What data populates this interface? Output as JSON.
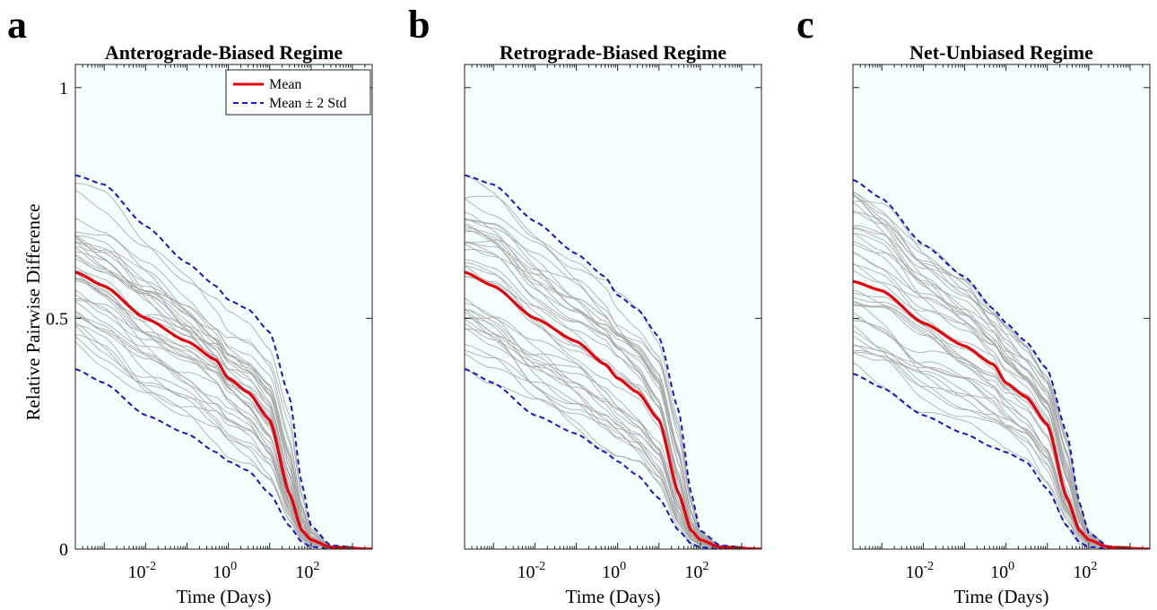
{
  "colors": {
    "background": "#f5ffff",
    "mean": "#e8000b",
    "std": "#1414d2",
    "samples": "#a8a8a8",
    "axis": "#222222"
  },
  "legend": {
    "mean_label": "Mean",
    "std_label": "Mean ± 2 Std",
    "placement": "top-right of panel a"
  },
  "chart_data": [
    {
      "panel": "a",
      "type": "line",
      "title": "Anterograde-Biased Regime",
      "xlabel": "Time (Days)",
      "ylabel": "Relative Pairwise Difference",
      "xscale": "log",
      "xlim": [
        0.0002,
        3000
      ],
      "ylim": [
        0,
        1.05
      ],
      "xticks": [
        {
          "value": 0.01,
          "base": "10",
          "exp": "-2"
        },
        {
          "value": 1,
          "base": "10",
          "exp": "0"
        },
        {
          "value": 100,
          "base": "10",
          "exp": "2"
        }
      ],
      "yticks": [
        {
          "value": 0,
          "label": "0"
        },
        {
          "value": 0.5,
          "label": "0.5"
        },
        {
          "value": 1,
          "label": "1"
        }
      ],
      "x": [
        0.0002,
        0.001,
        0.01,
        0.1,
        0.5,
        1,
        3,
        10,
        30,
        60,
        100,
        300,
        3000
      ],
      "series": [
        {
          "name": "Mean",
          "values": [
            0.6,
            0.57,
            0.5,
            0.45,
            0.41,
            0.37,
            0.34,
            0.28,
            0.12,
            0.04,
            0.02,
            0.004,
            0.0
          ]
        },
        {
          "name": "Mean ± 2 Std",
          "values": [
            0.81,
            0.79,
            0.7,
            0.62,
            0.57,
            0.54,
            0.52,
            0.47,
            0.33,
            0.14,
            0.05,
            0.008,
            0.0
          ]
        },
        {
          "name": "Mean ± 2 Std",
          "values": [
            0.39,
            0.36,
            0.29,
            0.25,
            0.21,
            0.19,
            0.17,
            0.12,
            0.05,
            0.015,
            0.005,
            0.0,
            0.0
          ]
        }
      ],
      "sample_count": 40,
      "show_legend": true
    },
    {
      "panel": "b",
      "type": "line",
      "title": "Retrograde-Biased Regime",
      "xlabel": "Time (Days)",
      "ylabel": "",
      "xscale": "log",
      "xlim": [
        0.0002,
        3000
      ],
      "ylim": [
        0,
        1.05
      ],
      "xticks": [
        {
          "value": 0.01,
          "base": "10",
          "exp": "-2"
        },
        {
          "value": 1,
          "base": "10",
          "exp": "0"
        },
        {
          "value": 100,
          "base": "10",
          "exp": "2"
        }
      ],
      "yticks": [],
      "x": [
        0.0002,
        0.001,
        0.01,
        0.1,
        0.5,
        1,
        3,
        10,
        30,
        60,
        100,
        300,
        3000
      ],
      "series": [
        {
          "name": "Mean",
          "values": [
            0.6,
            0.57,
            0.5,
            0.45,
            0.4,
            0.37,
            0.34,
            0.28,
            0.12,
            0.04,
            0.02,
            0.004,
            0.0
          ]
        },
        {
          "name": "Mean ± 2 Std",
          "values": [
            0.81,
            0.79,
            0.71,
            0.64,
            0.59,
            0.55,
            0.52,
            0.46,
            0.3,
            0.12,
            0.04,
            0.008,
            0.0
          ]
        },
        {
          "name": "Mean ± 2 Std",
          "values": [
            0.39,
            0.36,
            0.29,
            0.25,
            0.21,
            0.19,
            0.16,
            0.11,
            0.04,
            0.012,
            0.004,
            0.0,
            0.0
          ]
        }
      ],
      "sample_count": 40,
      "show_legend": false
    },
    {
      "panel": "c",
      "type": "line",
      "title": "Net-Unbiased Regime",
      "xlabel": "Time (Days)",
      "ylabel": "",
      "xscale": "log",
      "xlim": [
        0.0002,
        3000
      ],
      "ylim": [
        0,
        1.05
      ],
      "xticks": [
        {
          "value": 0.01,
          "base": "10",
          "exp": "-2"
        },
        {
          "value": 1,
          "base": "10",
          "exp": "0"
        },
        {
          "value": 100,
          "base": "10",
          "exp": "2"
        }
      ],
      "yticks": [],
      "x": [
        0.0002,
        0.001,
        0.01,
        0.1,
        0.5,
        1,
        3,
        10,
        30,
        60,
        100,
        300,
        3000
      ],
      "series": [
        {
          "name": "Mean",
          "values": [
            0.58,
            0.56,
            0.49,
            0.44,
            0.4,
            0.36,
            0.33,
            0.27,
            0.11,
            0.04,
            0.02,
            0.004,
            0.0
          ]
        },
        {
          "name": "Mean ± 2 Std",
          "values": [
            0.8,
            0.76,
            0.66,
            0.59,
            0.52,
            0.49,
            0.45,
            0.39,
            0.25,
            0.1,
            0.035,
            0.006,
            0.0
          ]
        },
        {
          "name": "Mean ± 2 Std",
          "values": [
            0.38,
            0.35,
            0.29,
            0.25,
            0.22,
            0.21,
            0.19,
            0.13,
            0.05,
            0.015,
            0.005,
            0.0,
            0.0
          ]
        }
      ],
      "sample_count": 40,
      "show_legend": false
    }
  ]
}
